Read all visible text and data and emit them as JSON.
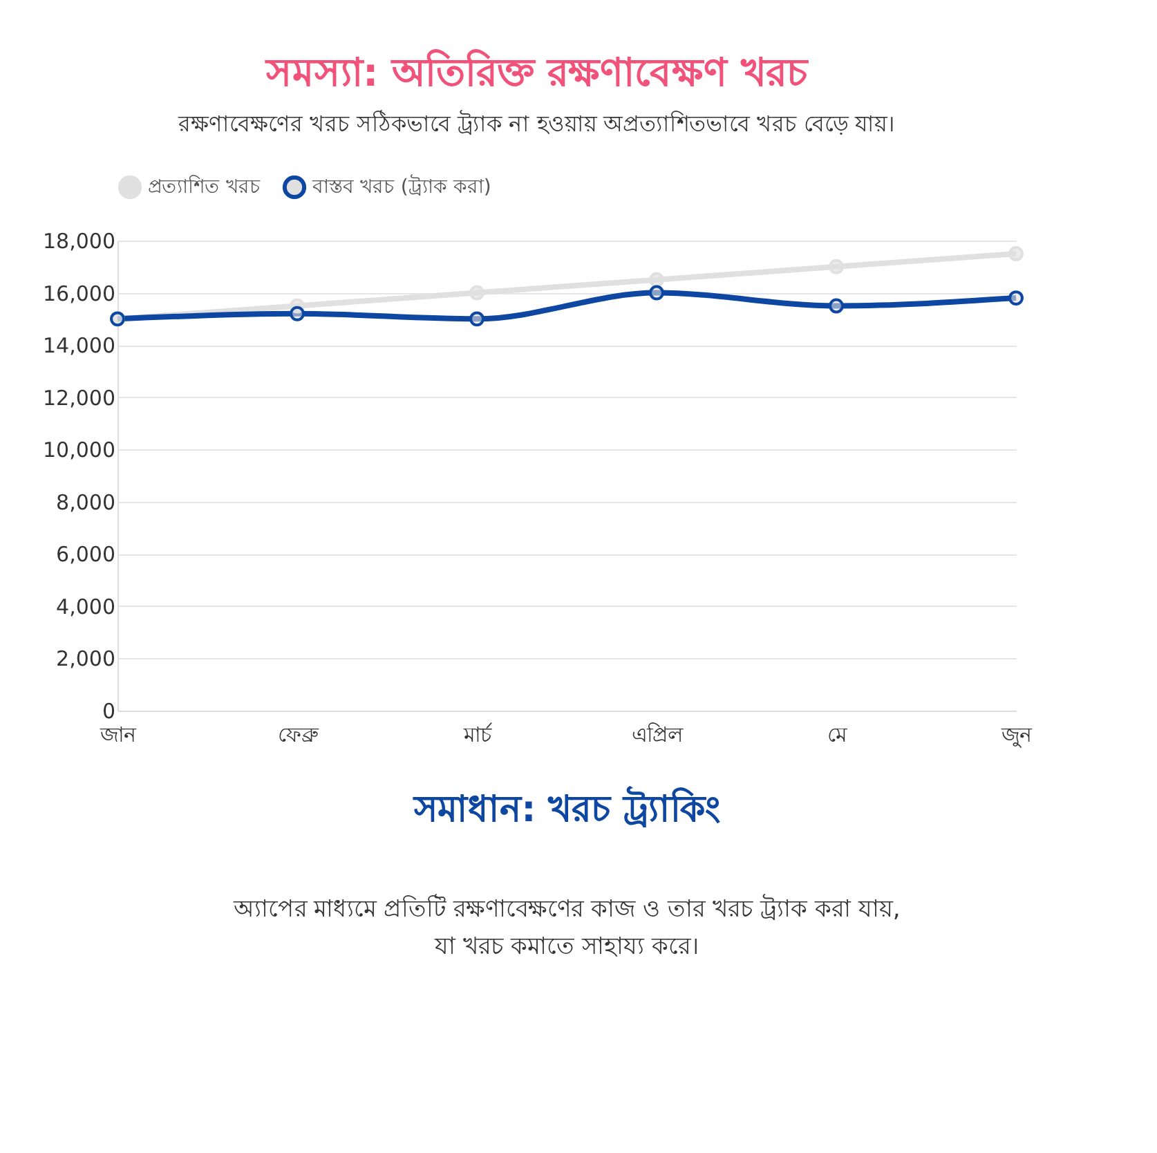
{
  "chart_data": {
    "type": "line",
    "title": "সমস্যা: অতিরিক্ত রক্ষণাবেক্ষণ খরচ",
    "subtitle": "রক্ষণাবেক্ষণের খরচ সঠিকভাবে ট্র্যাক না হওয়ায় অপ্রত্যাশিতভাবে খরচ বেড়ে যায়।",
    "categories": [
      "জান",
      "ফেব্রু",
      "মার্চ",
      "এপ্রিল",
      "মে",
      "জুন"
    ],
    "series": [
      {
        "name": "প্রত্যাশিত খরচ",
        "color": "#e0e0e0",
        "values": [
          15000,
          15500,
          16000,
          16500,
          17000,
          17500
        ]
      },
      {
        "name": "বাস্তব খরচ (ট্র্যাক করা)",
        "color": "#0d47a1",
        "values": [
          15000,
          15200,
          15000,
          16000,
          15500,
          15800
        ]
      }
    ],
    "ylim": [
      0,
      18000
    ],
    "yticks": [
      0,
      {
        "value": 2000,
        "label": "2,000"
      },
      {
        "value": 4000,
        "label": "4,000"
      },
      {
        "value": 6000,
        "label": "6,000"
      },
      {
        "value": 8000,
        "label": "8,000"
      },
      {
        "value": 10000,
        "label": "10,000"
      },
      {
        "value": 12000,
        "label": "12,000"
      },
      {
        "value": 14000,
        "label": "14,000"
      },
      {
        "value": 16000,
        "label": "16,000"
      },
      {
        "value": 18000,
        "label": "18,000"
      }
    ],
    "grid": "y",
    "legend": "top",
    "marker": "circle",
    "line_style": "solid",
    "annotations": [
      "সমাধান: খরচ ট্র্যাকিং",
      "অ্যাপের মাধ্যমে প্রতিটি রক্ষণাবেক্ষণের কাজ ও তার খরচ ট্র্যাক করা যায়, যা খরচ কমাতে সাহায্য করে।"
    ]
  }
}
